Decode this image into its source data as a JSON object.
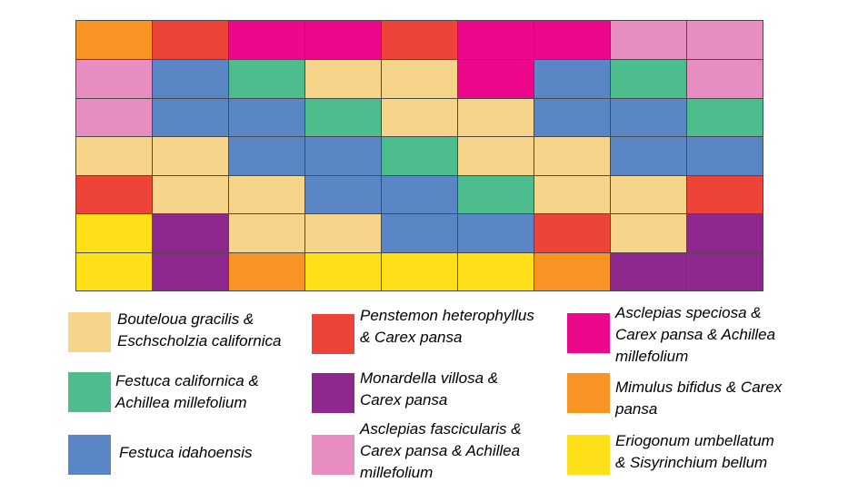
{
  "colors": {
    "bouteloua": "#F6D58A",
    "festuca_cal": "#4DBD8E",
    "festuca_ida": "#5A86C6",
    "penstemon": "#EE4339",
    "monardella": "#8E278E",
    "asclepias_fasc": "#E88DBF",
    "asclepias_spec": "#EC078B",
    "mimulus": "#F79424",
    "eriogonum": "#FEE019"
  },
  "grid": [
    [
      "mimulus",
      "penstemon",
      "asclepias_spec",
      "asclepias_spec",
      "penstemon",
      "asclepias_spec",
      "asclepias_spec",
      "asclepias_fasc",
      "asclepias_fasc"
    ],
    [
      "asclepias_fasc",
      "festuca_ida",
      "festuca_cal",
      "bouteloua",
      "bouteloua",
      "asclepias_spec",
      "festuca_ida",
      "festuca_cal",
      "asclepias_fasc"
    ],
    [
      "asclepias_fasc",
      "festuca_ida",
      "festuca_ida",
      "festuca_cal",
      "bouteloua",
      "bouteloua",
      "festuca_ida",
      "festuca_ida",
      "festuca_cal"
    ],
    [
      "bouteloua",
      "bouteloua",
      "festuca_ida",
      "festuca_ida",
      "festuca_cal",
      "bouteloua",
      "bouteloua",
      "festuca_ida",
      "festuca_ida"
    ],
    [
      "penstemon",
      "bouteloua",
      "bouteloua",
      "festuca_ida",
      "festuca_ida",
      "festuca_cal",
      "bouteloua",
      "bouteloua",
      "penstemon"
    ],
    [
      "eriogonum",
      "monardella",
      "bouteloua",
      "bouteloua",
      "festuca_ida",
      "festuca_ida",
      "penstemon",
      "bouteloua",
      "monardella"
    ],
    [
      "eriogonum",
      "monardella",
      "mimulus",
      "eriogonum",
      "eriogonum",
      "eriogonum",
      "mimulus",
      "monardella",
      "monardella"
    ]
  ],
  "legend": [
    {
      "key": "bouteloua",
      "label": "Bouteloua gracilis &\nEschscholzia californica"
    },
    {
      "key": "festuca_cal",
      "label": "Festuca californica &\nAchillea millefolium"
    },
    {
      "key": "festuca_ida",
      "label": "Festuca idahoensis"
    },
    {
      "key": "penstemon",
      "label": "Penstemon heterophyllus\n& Carex pansa"
    },
    {
      "key": "monardella",
      "label": "Monardella villosa &\nCarex pansa"
    },
    {
      "key": "asclepias_fasc",
      "label": "Asclepias fascicularis &\nCarex pansa & Achillea\nmillefolium"
    },
    {
      "key": "asclepias_spec",
      "label": "Asclepias speciosa &\nCarex pansa & Achillea\nmillefolium"
    },
    {
      "key": "mimulus",
      "label": "Mimulus bifidus & Carex\npansa"
    },
    {
      "key": "eriogonum",
      "label": "Eriogonum umbellatum\n& Sisyrinchium bellum"
    }
  ]
}
